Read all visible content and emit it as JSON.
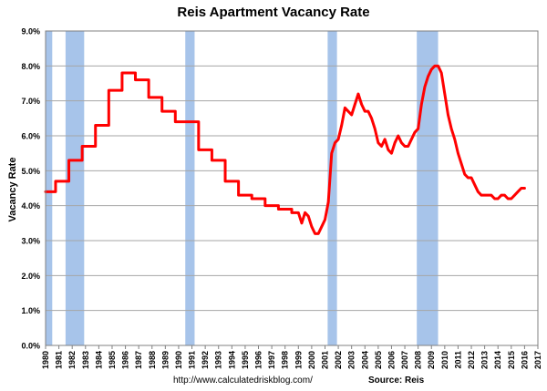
{
  "chart_data": {
    "type": "line",
    "title": "Reis Apartment Vacancy Rate",
    "ylabel": "Vacancy Rate",
    "xlabel": "",
    "xlim": [
      1980,
      2017
    ],
    "ylim": [
      0,
      9
    ],
    "y_ticks": [
      "0.0%",
      "1.0%",
      "2.0%",
      "3.0%",
      "4.0%",
      "5.0%",
      "6.0%",
      "7.0%",
      "8.0%",
      "9.0%"
    ],
    "x_ticks": [
      "1980",
      "1981",
      "1982",
      "1983",
      "1984",
      "1985",
      "1986",
      "1987",
      "1988",
      "1989",
      "1990",
      "1991",
      "1992",
      "1993",
      "1994",
      "1995",
      "1996",
      "1997",
      "1998",
      "1999",
      "2000",
      "2001",
      "2002",
      "2003",
      "2004",
      "2005",
      "2006",
      "2007",
      "2008",
      "2009",
      "2010",
      "2011",
      "2012",
      "2013",
      "2014",
      "2015",
      "2016",
      "2017"
    ],
    "grid": true,
    "series_color": "#ff0000",
    "recession_color": "#a7c4ea",
    "recessions": [
      [
        1980.0,
        1980.5
      ],
      [
        1981.5,
        1982.9
      ],
      [
        1990.5,
        1991.2
      ],
      [
        2001.2,
        2001.9
      ],
      [
        2007.9,
        2009.5
      ]
    ],
    "series": [
      {
        "x": [
          1980.0,
          1980.75,
          1980.75,
          1981.75,
          1981.75,
          1982.75,
          1982.75,
          1983.75,
          1983.75,
          1984.75,
          1984.75,
          1985.75,
          1985.75,
          1986.75,
          1986.75,
          1987.75,
          1987.75,
          1988.75,
          1988.75,
          1989.75,
          1989.75,
          1990.5,
          1991.25,
          1991.5,
          1991.5,
          1992.5,
          1992.5,
          1993.5,
          1993.5,
          1994.5,
          1994.5,
          1995.5,
          1995.5,
          1996.5,
          1996.5,
          1997.5,
          1997.5,
          1998.5,
          1998.5,
          1999.0,
          1999.25,
          1999.5,
          1999.75,
          2000.0,
          2000.25,
          2000.5,
          2000.75,
          2001.0,
          2001.25,
          2001.5,
          2001.75,
          2002.0,
          2002.25,
          2002.5,
          2002.75,
          2003.0,
          2003.25,
          2003.5,
          2003.75,
          2004.0,
          2004.25,
          2004.5,
          2004.75,
          2005.0,
          2005.25,
          2005.5,
          2005.75,
          2006.0,
          2006.25,
          2006.5,
          2006.75,
          2007.0,
          2007.25,
          2007.5,
          2007.75,
          2008.0,
          2008.25,
          2008.5,
          2008.75,
          2009.0,
          2009.25,
          2009.5,
          2009.75,
          2010.0,
          2010.25,
          2010.5,
          2010.75,
          2011.0,
          2011.25,
          2011.5,
          2011.75,
          2012.0,
          2012.25,
          2012.5,
          2012.75,
          2013.0,
          2013.25,
          2013.5,
          2013.75,
          2014.0,
          2014.25,
          2014.5,
          2014.75,
          2015.0,
          2015.25,
          2015.5,
          2015.75,
          2016.0
        ],
        "y": [
          4.4,
          4.4,
          4.7,
          4.7,
          5.3,
          5.3,
          5.7,
          5.7,
          6.3,
          6.3,
          7.3,
          7.3,
          7.8,
          7.8,
          7.6,
          7.6,
          7.1,
          7.1,
          6.7,
          6.7,
          6.4,
          6.4,
          6.4,
          6.4,
          5.6,
          5.6,
          5.3,
          5.3,
          4.7,
          4.7,
          4.3,
          4.3,
          4.2,
          4.2,
          4.0,
          4.0,
          3.9,
          3.9,
          3.8,
          3.8,
          3.5,
          3.8,
          3.7,
          3.4,
          3.2,
          3.2,
          3.4,
          3.6,
          4.1,
          5.5,
          5.8,
          5.9,
          6.3,
          6.8,
          6.7,
          6.6,
          6.9,
          7.2,
          6.9,
          6.7,
          6.7,
          6.5,
          6.2,
          5.8,
          5.7,
          5.9,
          5.6,
          5.5,
          5.8,
          6.0,
          5.8,
          5.7,
          5.7,
          5.9,
          6.1,
          6.2,
          6.9,
          7.4,
          7.7,
          7.9,
          8.0,
          8.0,
          7.8,
          7.2,
          6.6,
          6.2,
          5.9,
          5.5,
          5.2,
          4.9,
          4.8,
          4.8,
          4.6,
          4.4,
          4.3,
          4.3,
          4.3,
          4.3,
          4.2,
          4.2,
          4.3,
          4.3,
          4.2,
          4.2,
          4.3,
          4.4,
          4.5,
          4.5
        ]
      }
    ]
  },
  "footer": {
    "url": "http://www.calculatedriskblog.com/",
    "source": "Source: Reis"
  }
}
